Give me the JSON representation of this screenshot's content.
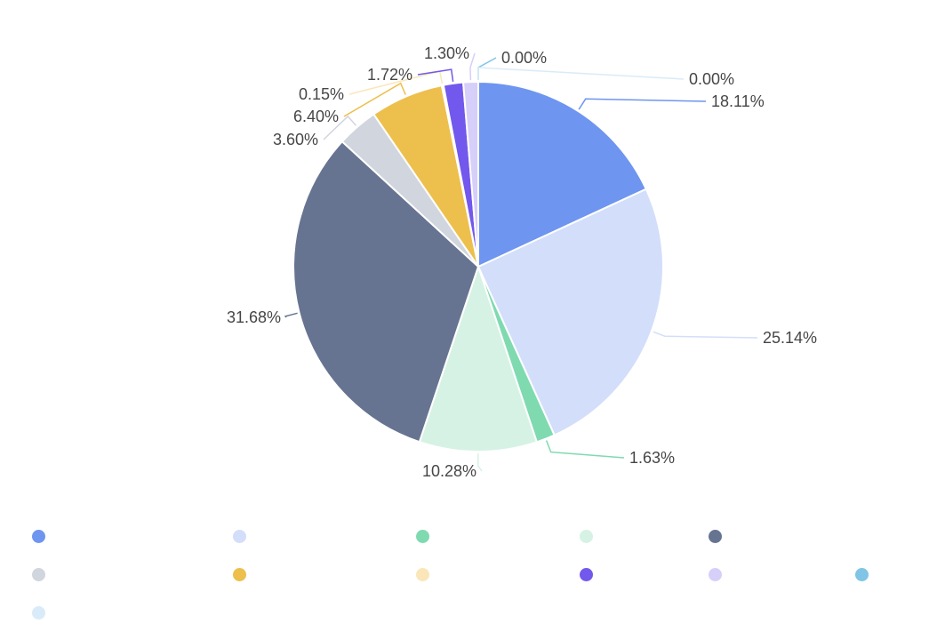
{
  "chart_data": {
    "type": "pie",
    "slices": [
      {
        "name": "",
        "value": 18.11,
        "label": "18.11%",
        "color": "#6e95ef"
      },
      {
        "name": "",
        "value": 25.14,
        "label": "25.14%",
        "color": "#d3defa"
      },
      {
        "name": "",
        "value": 1.63,
        "label": "1.63%",
        "color": "#7fdab0"
      },
      {
        "name": "",
        "value": 10.28,
        "label": "10.28%",
        "color": "#d6f2e4"
      },
      {
        "name": "",
        "value": 31.68,
        "label": "31.68%",
        "color": "#667491"
      },
      {
        "name": "",
        "value": 3.6,
        "label": "3.60%",
        "color": "#d1d5dd"
      },
      {
        "name": "",
        "value": 6.4,
        "label": "6.40%",
        "color": "#edbf4c"
      },
      {
        "name": "",
        "value": 0.15,
        "label": "0.15%",
        "color": "#fbe6b9"
      },
      {
        "name": "",
        "value": 1.72,
        "label": "1.72%",
        "color": "#7258ec"
      },
      {
        "name": "",
        "value": 1.3,
        "label": "1.30%",
        "color": "#d6cff9"
      },
      {
        "name": "",
        "value": 0.0,
        "label": "0.00%",
        "color": "#80c4e6"
      },
      {
        "name": "",
        "value": 0.0,
        "label": "0.00%",
        "color": "#d9ebf8"
      }
    ],
    "legend_position": "bottom"
  }
}
